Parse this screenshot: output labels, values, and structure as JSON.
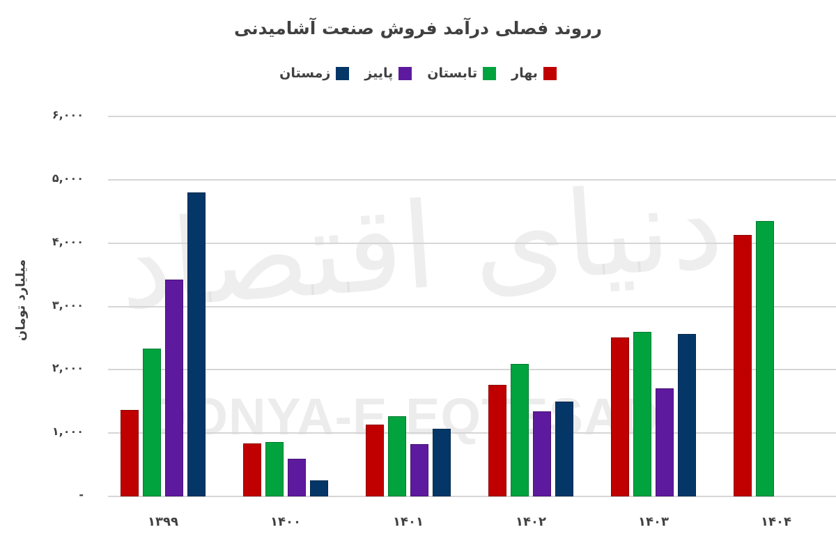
{
  "chart_data": {
    "type": "bar",
    "title": "رروند فصلی درآمد فروش صنعت آشامیدنی",
    "xlabel": "",
    "ylabel": "میلیارد تومان",
    "ylim": [
      0,
      6000
    ],
    "grid": true,
    "legend_position": "top",
    "categories": [
      "1399",
      "1400",
      "1401",
      "1402",
      "1403",
      "1404"
    ],
    "category_labels": [
      "۱۳۹۹",
      "۱۴۰۰",
      "۱۴۰۱",
      "۱۴۰۲",
      "۱۴۰۳",
      "۱۴۰۴"
    ],
    "ytick_labels": [
      "-",
      "۱,۰۰۰",
      "۲,۰۰۰",
      "۳,۰۰۰",
      "۴,۰۰۰",
      "۵,۰۰۰",
      "۶,۰۰۰"
    ],
    "yticks": [
      0,
      1000,
      2000,
      3000,
      4000,
      5000,
      6000
    ],
    "series": [
      {
        "name": "بهار",
        "color": "#c00000",
        "values": [
          1360,
          835,
          1130,
          1760,
          2505,
          4130
        ]
      },
      {
        "name": "تابستان",
        "color": "#00a33e",
        "values": [
          2330,
          857,
          1265,
          2090,
          2595,
          4350
        ]
      },
      {
        "name": "پاییز",
        "color": "#5e1a9e",
        "values": [
          3420,
          595,
          825,
          1340,
          1705,
          null
        ]
      },
      {
        "name": "زمستان",
        "color": "#043767",
        "values": [
          4800,
          255,
          1065,
          1495,
          2560,
          null
        ]
      }
    ]
  },
  "watermark": {
    "latin": "DONYA-E-EQTESAD",
    "persian": "دنیای اقتصاد"
  }
}
